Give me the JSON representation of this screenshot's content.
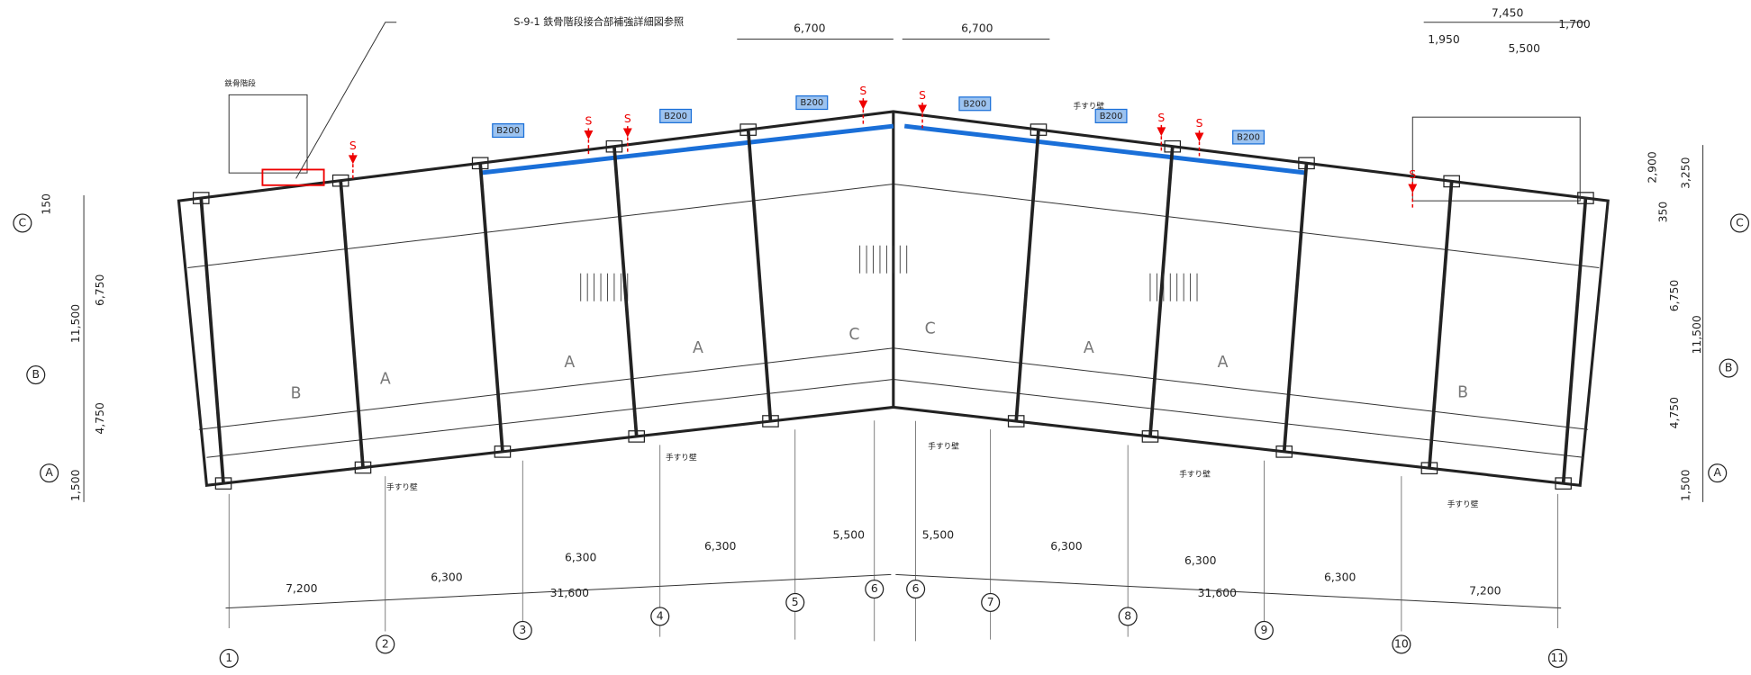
{
  "callout": "S-9-1 鉄骨階段接合部補強詳細図参照",
  "stair_label": "鉄骨階段",
  "handrail_labels": [
    "手すり壁",
    "手すり壁",
    "手すり壁",
    "手すり壁",
    "手すり壁",
    "手すり壁"
  ],
  "beam_labels": [
    "B200",
    "B200",
    "B200",
    "B200",
    "B200",
    "B200"
  ],
  "s_markers": [
    "S",
    "S",
    "S",
    "S",
    "S",
    "S",
    "S",
    "S"
  ],
  "row_axes": {
    "left": [
      "C",
      "B",
      "A"
    ],
    "right": [
      "C",
      "B",
      "A"
    ]
  },
  "column_axes": [
    "1",
    "2",
    "3",
    "4",
    "5",
    "6",
    "6",
    "7",
    "8",
    "9",
    "10",
    "11"
  ],
  "unit_types": [
    "B",
    "A",
    "A",
    "A",
    "C",
    "C",
    "A",
    "A",
    "B"
  ],
  "dimensions": {
    "top": [
      "6,700",
      "6,700",
      "7,450",
      "1,700",
      "1,950",
      "5,500"
    ],
    "left": [
      "150",
      "6,750",
      "11,500",
      "4,750",
      "1,500"
    ],
    "right": [
      "2,900",
      "3,250",
      "350",
      "6,750",
      "11,500",
      "4,750",
      "1,500"
    ],
    "bottom": [
      "5,500",
      "5,500",
      "6,300",
      "6,300",
      "6,300",
      "7,200",
      "31,600",
      "6,300",
      "6,300",
      "6,300",
      "31,600",
      "7,200"
    ]
  }
}
